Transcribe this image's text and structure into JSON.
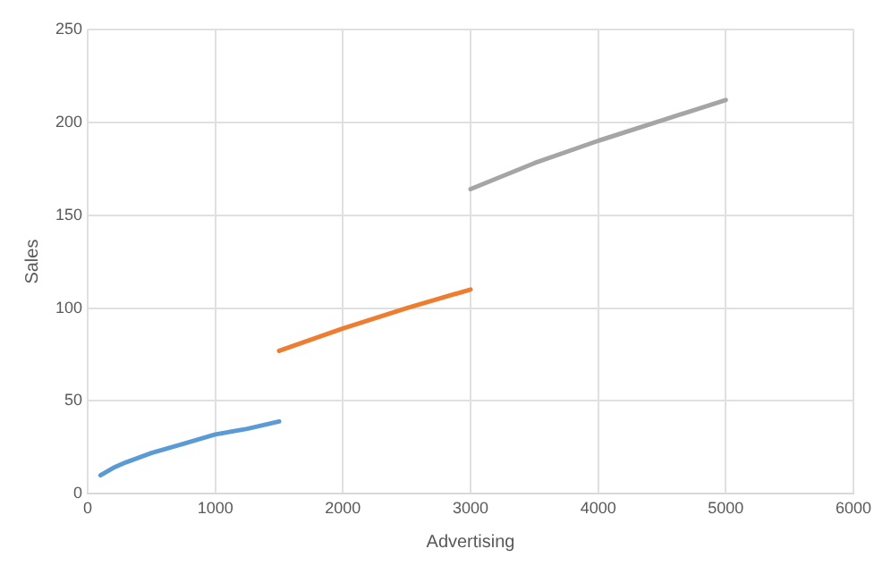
{
  "chart_data": {
    "type": "line",
    "xlabel": "Advertising",
    "ylabel": "Sales",
    "xlim": [
      0,
      6000
    ],
    "xticks": [
      0,
      1000,
      2000,
      3000,
      4000,
      5000,
      6000
    ],
    "ylim": [
      0,
      250
    ],
    "yticks": [
      0,
      50,
      100,
      150,
      200,
      250
    ],
    "grid": true,
    "legend": false,
    "marker": "none",
    "series": [
      {
        "color": "#5b9bd5",
        "x": [
          100,
          200,
          300,
          500,
          750,
          1000,
          1250,
          1500
        ],
        "values": [
          10,
          14,
          17,
          22,
          27,
          32,
          35,
          39
        ]
      },
      {
        "color": "#ed7d31",
        "x": [
          1500,
          2000,
          2500,
          3000
        ],
        "values": [
          77,
          89,
          100,
          110
        ]
      },
      {
        "color": "#a5a5a5",
        "x": [
          3000,
          3500,
          4000,
          4500,
          5000
        ],
        "values": [
          164,
          178,
          190,
          201,
          212
        ]
      }
    ]
  }
}
